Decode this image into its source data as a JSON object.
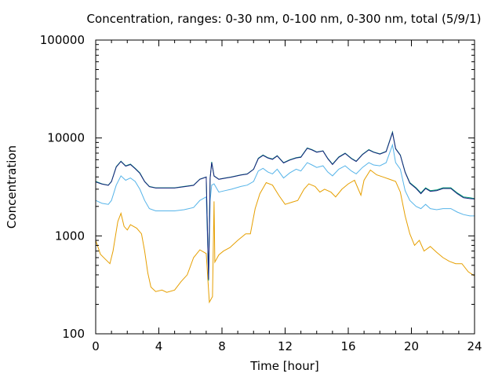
{
  "chart_data": {
    "type": "line",
    "title": "Concentration, ranges: 0-30 nm, 0-100 nm, 0-300 nm, total (5/9/1)",
    "xlabel": "Time [hour]",
    "ylabel": "Concentration",
    "xlim": [
      0,
      24
    ],
    "ylim": [
      100,
      100000
    ],
    "yscale": "log",
    "grid": false,
    "legend": "none",
    "xticks": [
      0,
      4,
      8,
      12,
      16,
      20,
      24
    ],
    "xtick_labels": [
      "0",
      "4",
      "8",
      "12",
      "16",
      "20",
      "24"
    ],
    "yticks": [
      100,
      1000,
      10000,
      100000
    ],
    "ytick_labels": [
      "100",
      "1000",
      "10000",
      "100000"
    ],
    "series": [
      {
        "color": "#e69f00",
        "points": [
          [
            0,
            900
          ],
          [
            0.3,
            650
          ],
          [
            0.6,
            580
          ],
          [
            0.9,
            520
          ],
          [
            1.1,
            700
          ],
          [
            1.4,
            1400
          ],
          [
            1.6,
            1700
          ],
          [
            1.8,
            1250
          ],
          [
            2.0,
            1150
          ],
          [
            2.2,
            1300
          ],
          [
            2.6,
            1200
          ],
          [
            2.9,
            1050
          ],
          [
            3.1,
            700
          ],
          [
            3.3,
            420
          ],
          [
            3.5,
            300
          ],
          [
            3.8,
            270
          ],
          [
            4.2,
            280
          ],
          [
            4.5,
            265
          ],
          [
            5.0,
            280
          ],
          [
            5.4,
            340
          ],
          [
            5.8,
            400
          ],
          [
            6.2,
            600
          ],
          [
            6.6,
            720
          ],
          [
            7.0,
            660
          ],
          [
            7.2,
            210
          ],
          [
            7.4,
            240
          ],
          [
            7.5,
            2250
          ],
          [
            7.55,
            540
          ],
          [
            7.8,
            640
          ],
          [
            8.1,
            700
          ],
          [
            8.5,
            760
          ],
          [
            9.0,
            900
          ],
          [
            9.5,
            1050
          ],
          [
            9.8,
            1050
          ],
          [
            10.1,
            1900
          ],
          [
            10.4,
            2700
          ],
          [
            10.8,
            3500
          ],
          [
            11.2,
            3300
          ],
          [
            11.6,
            2600
          ],
          [
            12.0,
            2100
          ],
          [
            12.4,
            2200
          ],
          [
            12.8,
            2300
          ],
          [
            13.2,
            3000
          ],
          [
            13.5,
            3400
          ],
          [
            13.9,
            3200
          ],
          [
            14.2,
            2800
          ],
          [
            14.5,
            3000
          ],
          [
            14.9,
            2800
          ],
          [
            15.2,
            2500
          ],
          [
            15.6,
            3000
          ],
          [
            16.0,
            3400
          ],
          [
            16.4,
            3700
          ],
          [
            16.8,
            2600
          ],
          [
            17.0,
            3700
          ],
          [
            17.4,
            4700
          ],
          [
            17.8,
            4200
          ],
          [
            18.2,
            4000
          ],
          [
            18.6,
            3800
          ],
          [
            19.0,
            3600
          ],
          [
            19.3,
            2800
          ],
          [
            19.6,
            1600
          ],
          [
            19.9,
            1050
          ],
          [
            20.2,
            800
          ],
          [
            20.5,
            900
          ],
          [
            20.8,
            700
          ],
          [
            21.2,
            780
          ],
          [
            21.6,
            680
          ],
          [
            22.0,
            600
          ],
          [
            22.4,
            550
          ],
          [
            22.8,
            520
          ],
          [
            23.2,
            520
          ],
          [
            23.6,
            430
          ],
          [
            24,
            390
          ]
        ]
      },
      {
        "color": "#56b4e9",
        "points": [
          [
            0,
            2300
          ],
          [
            0.4,
            2150
          ],
          [
            0.8,
            2100
          ],
          [
            1.0,
            2300
          ],
          [
            1.3,
            3300
          ],
          [
            1.6,
            4100
          ],
          [
            1.9,
            3700
          ],
          [
            2.2,
            3900
          ],
          [
            2.5,
            3600
          ],
          [
            2.8,
            3000
          ],
          [
            3.1,
            2300
          ],
          [
            3.4,
            1900
          ],
          [
            3.8,
            1800
          ],
          [
            4.4,
            1800
          ],
          [
            5.0,
            1800
          ],
          [
            5.6,
            1850
          ],
          [
            6.2,
            1950
          ],
          [
            6.6,
            2300
          ],
          [
            7.0,
            2500
          ],
          [
            7.15,
            400
          ],
          [
            7.25,
            2300
          ],
          [
            7.35,
            3300
          ],
          [
            7.5,
            3400
          ],
          [
            7.8,
            2800
          ],
          [
            8.2,
            2900
          ],
          [
            8.6,
            3000
          ],
          [
            9.2,
            3200
          ],
          [
            9.6,
            3300
          ],
          [
            10.0,
            3600
          ],
          [
            10.3,
            4600
          ],
          [
            10.6,
            4900
          ],
          [
            10.9,
            4500
          ],
          [
            11.2,
            4300
          ],
          [
            11.5,
            4800
          ],
          [
            11.9,
            3900
          ],
          [
            12.3,
            4400
          ],
          [
            12.7,
            4800
          ],
          [
            13.0,
            4600
          ],
          [
            13.4,
            5600
          ],
          [
            13.7,
            5300
          ],
          [
            14.0,
            5000
          ],
          [
            14.4,
            5200
          ],
          [
            14.7,
            4500
          ],
          [
            15.0,
            4100
          ],
          [
            15.4,
            4800
          ],
          [
            15.8,
            5200
          ],
          [
            16.2,
            4600
          ],
          [
            16.5,
            4300
          ],
          [
            16.9,
            5000
          ],
          [
            17.3,
            5600
          ],
          [
            17.6,
            5300
          ],
          [
            18.0,
            5200
          ],
          [
            18.4,
            5600
          ],
          [
            18.8,
            8500
          ],
          [
            19.0,
            5600
          ],
          [
            19.3,
            4800
          ],
          [
            19.6,
            2900
          ],
          [
            19.9,
            2300
          ],
          [
            20.3,
            2000
          ],
          [
            20.6,
            1900
          ],
          [
            20.9,
            2100
          ],
          [
            21.2,
            1900
          ],
          [
            21.6,
            1850
          ],
          [
            22.0,
            1900
          ],
          [
            22.5,
            1900
          ],
          [
            22.9,
            1750
          ],
          [
            23.3,
            1650
          ],
          [
            23.7,
            1600
          ],
          [
            24,
            1600
          ]
        ]
      },
      {
        "color": "#009e73",
        "points": [
          [
            0,
            3600
          ],
          [
            0.4,
            3400
          ],
          [
            0.8,
            3300
          ],
          [
            1.0,
            3600
          ],
          [
            1.3,
            5100
          ],
          [
            1.6,
            5800
          ],
          [
            1.9,
            5200
          ],
          [
            2.2,
            5400
          ],
          [
            2.5,
            4900
          ],
          [
            2.8,
            4400
          ],
          [
            3.1,
            3600
          ],
          [
            3.4,
            3200
          ],
          [
            3.8,
            3100
          ],
          [
            4.4,
            3100
          ],
          [
            5.0,
            3100
          ],
          [
            5.6,
            3200
          ],
          [
            6.2,
            3300
          ],
          [
            6.6,
            3800
          ],
          [
            7.0,
            4000
          ],
          [
            7.15,
            350
          ],
          [
            7.25,
            3900
          ],
          [
            7.35,
            5700
          ],
          [
            7.5,
            4100
          ],
          [
            7.8,
            3800
          ],
          [
            8.2,
            3900
          ],
          [
            8.6,
            4000
          ],
          [
            9.2,
            4200
          ],
          [
            9.6,
            4300
          ],
          [
            10.0,
            4800
          ],
          [
            10.3,
            6200
          ],
          [
            10.6,
            6700
          ],
          [
            10.9,
            6300
          ],
          [
            11.2,
            6100
          ],
          [
            11.5,
            6600
          ],
          [
            11.9,
            5600
          ],
          [
            12.3,
            6000
          ],
          [
            12.7,
            6300
          ],
          [
            13.0,
            6400
          ],
          [
            13.4,
            7900
          ],
          [
            13.7,
            7600
          ],
          [
            14.0,
            7200
          ],
          [
            14.4,
            7400
          ],
          [
            14.7,
            6200
          ],
          [
            15.0,
            5400
          ],
          [
            15.4,
            6400
          ],
          [
            15.8,
            7000
          ],
          [
            16.2,
            6200
          ],
          [
            16.5,
            5800
          ],
          [
            16.9,
            6800
          ],
          [
            17.3,
            7600
          ],
          [
            17.6,
            7200
          ],
          [
            18.0,
            6900
          ],
          [
            18.4,
            7300
          ],
          [
            18.8,
            11500
          ],
          [
            19.0,
            7800
          ],
          [
            19.3,
            6700
          ],
          [
            19.6,
            4500
          ],
          [
            19.9,
            3500
          ],
          [
            20.3,
            3100
          ],
          [
            20.6,
            2750
          ],
          [
            20.9,
            3100
          ],
          [
            21.2,
            2900
          ],
          [
            21.6,
            2950
          ],
          [
            22.0,
            3100
          ],
          [
            22.5,
            3100
          ],
          [
            22.9,
            2750
          ],
          [
            23.3,
            2500
          ],
          [
            23.7,
            2450
          ],
          [
            24,
            2400
          ]
        ]
      },
      {
        "color": "#1a237e",
        "points": [
          [
            0,
            3550
          ],
          [
            0.4,
            3380
          ],
          [
            0.8,
            3280
          ],
          [
            1.0,
            3580
          ],
          [
            1.3,
            5050
          ],
          [
            1.6,
            5750
          ],
          [
            1.9,
            5150
          ],
          [
            2.2,
            5350
          ],
          [
            2.5,
            4850
          ],
          [
            2.8,
            4350
          ],
          [
            3.1,
            3580
          ],
          [
            3.4,
            3180
          ],
          [
            3.8,
            3080
          ],
          [
            4.4,
            3080
          ],
          [
            5.0,
            3080
          ],
          [
            5.6,
            3180
          ],
          [
            6.2,
            3280
          ],
          [
            6.6,
            3780
          ],
          [
            7.0,
            3980
          ],
          [
            7.15,
            360
          ],
          [
            7.25,
            3880
          ],
          [
            7.35,
            5600
          ],
          [
            7.5,
            4080
          ],
          [
            7.8,
            3780
          ],
          [
            8.2,
            3880
          ],
          [
            8.6,
            3980
          ],
          [
            9.2,
            4180
          ],
          [
            9.6,
            4280
          ],
          [
            10.0,
            4780
          ],
          [
            10.3,
            6150
          ],
          [
            10.6,
            6650
          ],
          [
            10.9,
            6250
          ],
          [
            11.2,
            6050
          ],
          [
            11.5,
            6550
          ],
          [
            11.9,
            5550
          ],
          [
            12.3,
            5950
          ],
          [
            12.7,
            6250
          ],
          [
            13.0,
            6350
          ],
          [
            13.4,
            7850
          ],
          [
            13.7,
            7550
          ],
          [
            14.0,
            7150
          ],
          [
            14.4,
            7350
          ],
          [
            14.7,
            6150
          ],
          [
            15.0,
            5350
          ],
          [
            15.4,
            6350
          ],
          [
            15.8,
            6950
          ],
          [
            16.2,
            6150
          ],
          [
            16.5,
            5750
          ],
          [
            16.9,
            6750
          ],
          [
            17.3,
            7550
          ],
          [
            17.6,
            7150
          ],
          [
            18.0,
            6850
          ],
          [
            18.4,
            7250
          ],
          [
            18.8,
            11300
          ],
          [
            19.0,
            7750
          ],
          [
            19.3,
            6650
          ],
          [
            19.6,
            4450
          ],
          [
            19.9,
            3450
          ],
          [
            20.3,
            3050
          ],
          [
            20.6,
            2700
          ],
          [
            20.9,
            3050
          ],
          [
            21.2,
            2850
          ],
          [
            21.6,
            2900
          ],
          [
            22.0,
            3050
          ],
          [
            22.5,
            3050
          ],
          [
            22.9,
            2700
          ],
          [
            23.3,
            2450
          ],
          [
            23.7,
            2400
          ],
          [
            24,
            2380
          ]
        ]
      }
    ]
  }
}
